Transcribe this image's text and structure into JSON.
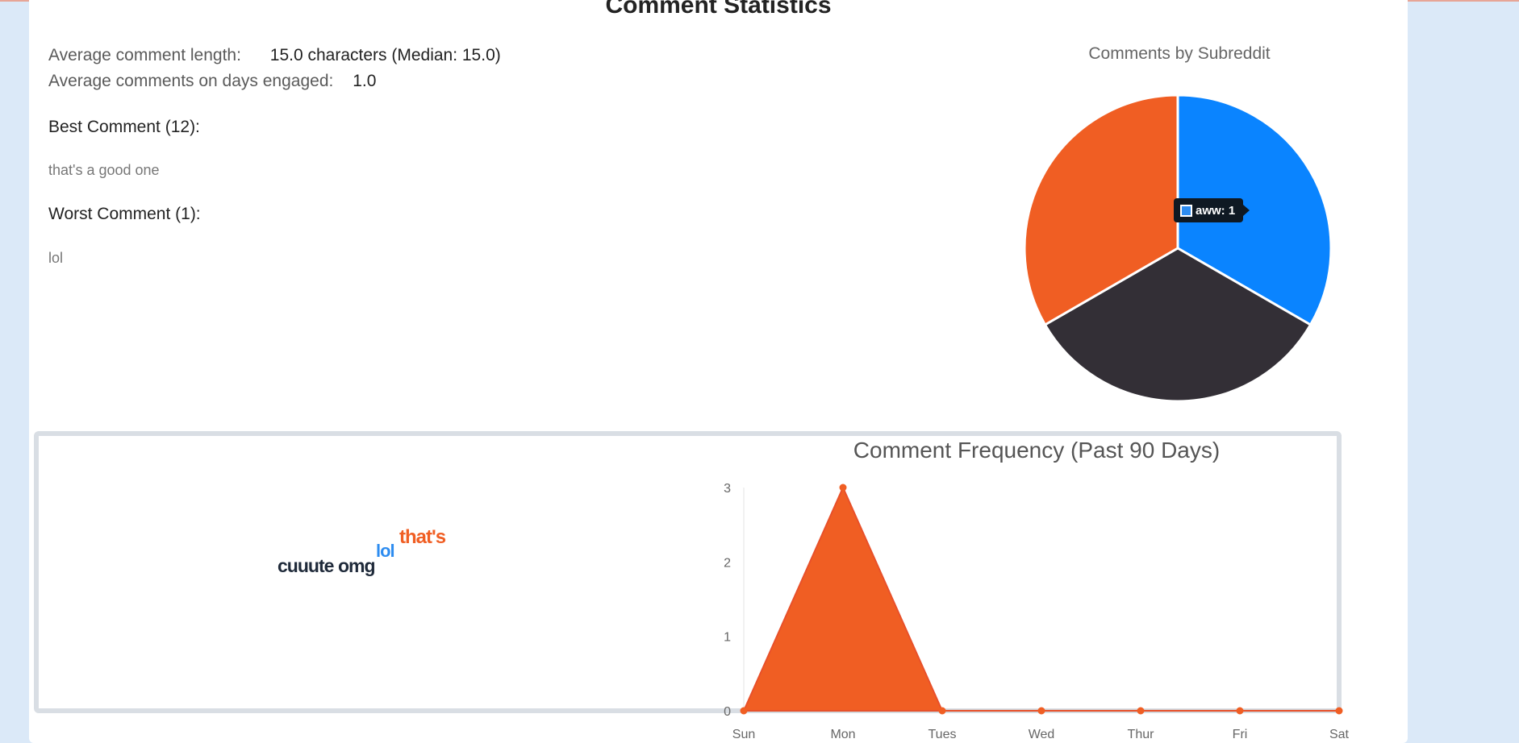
{
  "page": {
    "title": "Comment Statistics"
  },
  "stats": {
    "avg_length_label": "Average comment length:",
    "avg_length_value": "15.0 characters (Median: 15.0)",
    "avg_days_label": "Average comments on days engaged:",
    "avg_days_value": "1.0"
  },
  "best": {
    "heading": "Best Comment (12):",
    "text": "that's a good one"
  },
  "worst": {
    "heading": "Worst Comment (1):",
    "text": "lol"
  },
  "pie": {
    "title": "Comments by Subreddit",
    "tooltip": "aww: 1",
    "chart_data": {
      "type": "pie",
      "title": "Comments by Subreddit",
      "slices": [
        {
          "label": "aww",
          "value": 1,
          "color": "#0a84ff"
        },
        {
          "label": "",
          "value": 1,
          "color": "#332f36"
        },
        {
          "label": "",
          "value": 1,
          "color": "#f05e23"
        }
      ]
    }
  },
  "wordcloud": {
    "words": [
      {
        "text": "that's",
        "color": "#f05e23"
      },
      {
        "text": "lol",
        "color": "#2d8cf0"
      },
      {
        "text": "cuuute",
        "color": "#1f2a3a"
      },
      {
        "text": "omg",
        "color": "#1f2a3a"
      }
    ]
  },
  "frequency": {
    "title": "Comment Frequency (Past 90 Days)"
  },
  "chart_data": {
    "type": "area",
    "title": "Comment Frequency (Past 90 Days)",
    "categories": [
      "Sun",
      "Mon",
      "Tues",
      "Wed",
      "Thur",
      "Fri",
      "Sat"
    ],
    "values": [
      0,
      3,
      0,
      0,
      0,
      0,
      0
    ],
    "ylim": [
      0,
      3
    ],
    "yticks": [
      0,
      1,
      2,
      3
    ],
    "color": "#f05e23",
    "grid": false
  }
}
